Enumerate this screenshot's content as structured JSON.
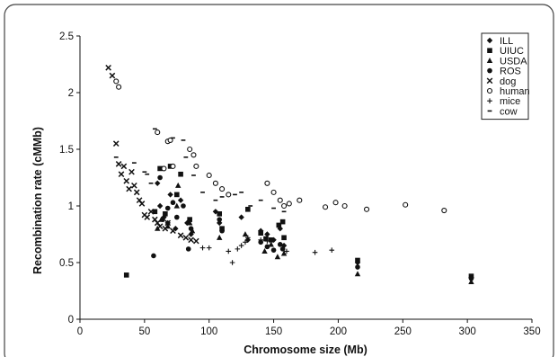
{
  "chart_data": {
    "type": "scatter",
    "xlabel": "Chromosome size (Mb)",
    "ylabel": "Recombination rate (cMMb)",
    "xlim": [
      0,
      350
    ],
    "ylim": [
      0,
      2.5
    ],
    "xticks": [
      "0",
      "50",
      "100",
      "150",
      "200",
      "250",
      "300",
      "350"
    ],
    "yticks": [
      "0",
      "0.5",
      "1",
      "1.5",
      "2",
      "2.5"
    ],
    "grid": false,
    "legend_position": "top-right",
    "series": [
      {
        "name": "ILL",
        "marker": "diamond",
        "points": [
          [
            60,
            1.2
          ],
          [
            62,
            1.0
          ],
          [
            65,
            0.9
          ],
          [
            68,
            0.85
          ],
          [
            70,
            1.1
          ],
          [
            74,
            0.8
          ],
          [
            78,
            1.05
          ],
          [
            83,
            0.85
          ],
          [
            86,
            0.75
          ],
          [
            105,
            0.95
          ],
          [
            108,
            0.85
          ],
          [
            125,
            0.9
          ],
          [
            130,
            0.7
          ],
          [
            140,
            0.78
          ],
          [
            145,
            0.75
          ],
          [
            150,
            0.7
          ],
          [
            155,
            0.8
          ],
          [
            158,
            0.65
          ],
          [
            215,
            0.5
          ],
          [
            303,
            0.37
          ]
        ]
      },
      {
        "name": "UIUC",
        "marker": "square",
        "points": [
          [
            36,
            0.39
          ],
          [
            58,
            0.95
          ],
          [
            62,
            1.33
          ],
          [
            66,
            0.93
          ],
          [
            70,
            1.35
          ],
          [
            75,
            1.1
          ],
          [
            78,
            1.28
          ],
          [
            85,
            0.88
          ],
          [
            108,
            0.93
          ],
          [
            110,
            0.8
          ],
          [
            130,
            0.97
          ],
          [
            140,
            0.76
          ],
          [
            144,
            0.71
          ],
          [
            148,
            0.7
          ],
          [
            154,
            0.83
          ],
          [
            157,
            0.86
          ],
          [
            158,
            0.72
          ],
          [
            215,
            0.52
          ],
          [
            303,
            0.38
          ]
        ]
      },
      {
        "name": "USDA",
        "marker": "triangle",
        "points": [
          [
            60,
            0.8
          ],
          [
            63,
            0.88
          ],
          [
            68,
            0.82
          ],
          [
            75,
            1.0
          ],
          [
            76,
            1.18
          ],
          [
            85,
            0.85
          ],
          [
            87,
            0.78
          ],
          [
            108,
            0.72
          ],
          [
            128,
            0.75
          ],
          [
            143,
            0.6
          ],
          [
            148,
            0.66
          ],
          [
            153,
            0.55
          ],
          [
            158,
            0.58
          ],
          [
            215,
            0.4
          ],
          [
            303,
            0.33
          ]
        ]
      },
      {
        "name": "ROS",
        "marker": "circle",
        "points": [
          [
            57,
            0.56
          ],
          [
            62,
            1.25
          ],
          [
            64,
            0.88
          ],
          [
            68,
            0.98
          ],
          [
            72,
            1.03
          ],
          [
            75,
            0.9
          ],
          [
            80,
            1.0
          ],
          [
            84,
            0.62
          ],
          [
            86,
            0.8
          ],
          [
            108,
            0.88
          ],
          [
            110,
            0.78
          ],
          [
            140,
            0.68
          ],
          [
            145,
            0.64
          ],
          [
            150,
            0.61
          ],
          [
            155,
            0.66
          ],
          [
            157,
            0.62
          ],
          [
            215,
            0.46
          ],
          [
            303,
            0.36
          ]
        ]
      },
      {
        "name": "dog",
        "marker": "x",
        "points": [
          [
            22,
            2.22
          ],
          [
            25,
            2.15
          ],
          [
            28,
            1.55
          ],
          [
            30,
            1.37
          ],
          [
            32,
            1.28
          ],
          [
            34,
            1.35
          ],
          [
            36,
            1.22
          ],
          [
            38,
            1.15
          ],
          [
            40,
            1.3
          ],
          [
            42,
            1.18
          ],
          [
            44,
            1.12
          ],
          [
            46,
            1.05
          ],
          [
            48,
            1.02
          ],
          [
            50,
            0.92
          ],
          [
            52,
            0.9
          ],
          [
            55,
            0.95
          ],
          [
            58,
            0.88
          ],
          [
            60,
            0.85
          ],
          [
            62,
            0.82
          ],
          [
            66,
            0.8
          ],
          [
            68,
            0.85
          ],
          [
            72,
            0.78
          ],
          [
            78,
            0.74
          ],
          [
            82,
            0.72
          ],
          [
            86,
            0.7
          ],
          [
            90,
            0.69
          ]
        ]
      },
      {
        "name": "human",
        "marker": "open-circle",
        "points": [
          [
            28,
            2.1
          ],
          [
            30,
            2.05
          ],
          [
            60,
            1.65
          ],
          [
            65,
            1.33
          ],
          [
            68,
            1.57
          ],
          [
            70,
            1.58
          ],
          [
            72,
            1.35
          ],
          [
            85,
            1.5
          ],
          [
            88,
            1.45
          ],
          [
            90,
            1.35
          ],
          [
            100,
            1.27
          ],
          [
            105,
            1.2
          ],
          [
            110,
            1.15
          ],
          [
            115,
            1.1
          ],
          [
            145,
            1.2
          ],
          [
            150,
            1.12
          ],
          [
            155,
            1.05
          ],
          [
            158,
            1.0
          ],
          [
            162,
            1.02
          ],
          [
            170,
            1.05
          ],
          [
            190,
            0.99
          ],
          [
            198,
            1.03
          ],
          [
            205,
            1.0
          ],
          [
            222,
            0.97
          ],
          [
            252,
            1.01
          ],
          [
            282,
            0.96
          ]
        ]
      },
      {
        "name": "mice",
        "marker": "plus",
        "points": [
          [
            95,
            0.63
          ],
          [
            100,
            0.63
          ],
          [
            115,
            0.6
          ],
          [
            118,
            0.5
          ],
          [
            122,
            0.62
          ],
          [
            125,
            0.65
          ],
          [
            128,
            0.68
          ],
          [
            130,
            0.72
          ],
          [
            140,
            0.7
          ],
          [
            145,
            0.69
          ],
          [
            160,
            0.6
          ],
          [
            182,
            0.59
          ],
          [
            195,
            0.61
          ]
        ]
      },
      {
        "name": "cow",
        "marker": "dash",
        "points": [
          [
            28,
            1.43
          ],
          [
            42,
            1.38
          ],
          [
            50,
            1.3
          ],
          [
            52,
            1.28
          ],
          [
            55,
            1.2
          ],
          [
            58,
            1.68
          ],
          [
            72,
            1.6
          ],
          [
            80,
            1.58
          ],
          [
            82,
            1.43
          ],
          [
            88,
            1.27
          ],
          [
            95,
            1.12
          ],
          [
            105,
            1.05
          ],
          [
            110,
            1.08
          ],
          [
            120,
            1.1
          ],
          [
            125,
            1.12
          ],
          [
            132,
            1.0
          ],
          [
            140,
            1.05
          ],
          [
            150,
            0.98
          ],
          [
            158,
            0.95
          ]
        ]
      }
    ]
  }
}
